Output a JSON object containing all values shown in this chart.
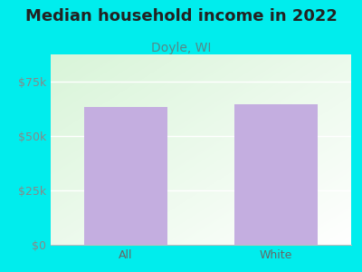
{
  "title": "Median household income in 2022",
  "subtitle": "Doyle, WI",
  "categories": [
    "All",
    "White"
  ],
  "values": [
    63500,
    64500
  ],
  "bar_color": "#c4aee0",
  "outer_bg": "#00eded",
  "title_color": "#222222",
  "subtitle_color": "#558888",
  "tick_label_color": "#888888",
  "xticklabel_color": "#666666",
  "ylim": [
    0,
    87500
  ],
  "yticks": [
    0,
    25000,
    50000,
    75000
  ],
  "ytick_labels": [
    "$0",
    "$25k",
    "$50k",
    "$75k"
  ],
  "title_fontsize": 13,
  "subtitle_fontsize": 10,
  "tick_fontsize": 9,
  "bar_width": 0.55
}
